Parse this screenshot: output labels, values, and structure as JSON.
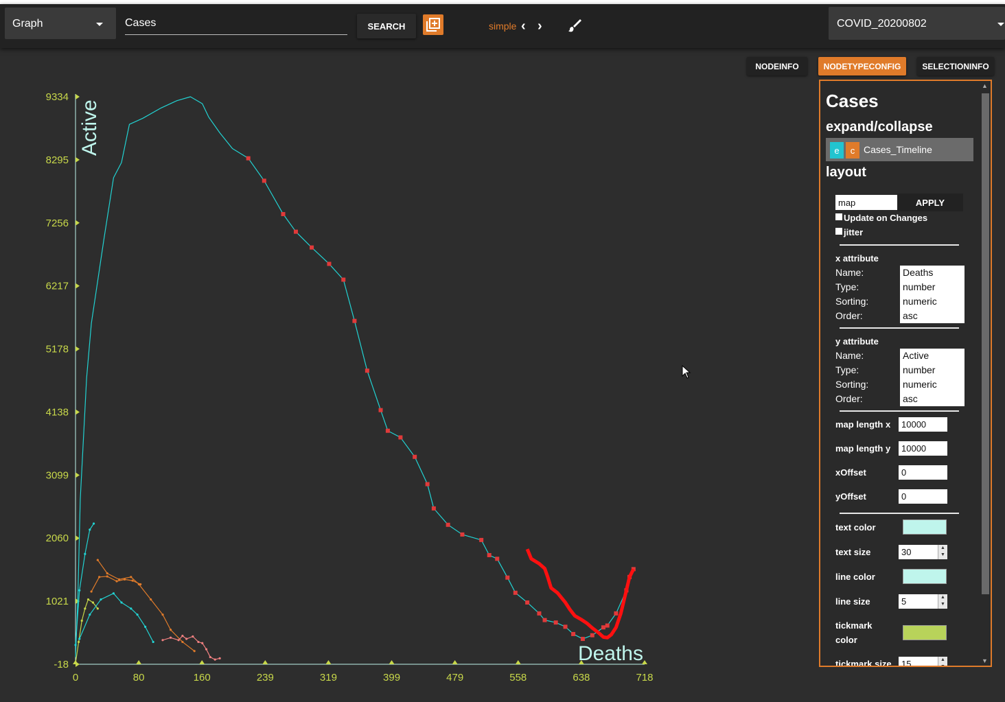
{
  "toolbar": {
    "view_select": "Graph",
    "search_value": "Cases",
    "search_label": "SEARCH",
    "mode_label": "simple",
    "database_select": "COVID_20200802"
  },
  "tabs": [
    {
      "label": "NODEINFO",
      "active": false
    },
    {
      "label": "NODETYPECONFIG",
      "active": true
    },
    {
      "label": "SELECTIONINFO",
      "active": false
    }
  ],
  "panel": {
    "title": "Cases",
    "expand_heading": "expand/collapse",
    "expand_item": {
      "e": "e",
      "c": "c",
      "label": "Cases_Timeline"
    },
    "layout_heading": "layout",
    "layout_value": "map",
    "apply_label": "APPLY",
    "update_on_changes": "Update on Changes",
    "jitter": "jitter",
    "x_attribute": {
      "heading": "x attribute",
      "labels": [
        "Name:",
        "Type:",
        "Sorting:",
        "Order:"
      ],
      "values": [
        "Deaths",
        "number",
        "numeric",
        "asc"
      ]
    },
    "y_attribute": {
      "heading": "y attribute",
      "labels": [
        "Name:",
        "Type:",
        "Sorting:",
        "Order:"
      ],
      "values": [
        "Active",
        "number",
        "numeric",
        "asc"
      ]
    },
    "map_length_x": {
      "label": "map length x",
      "value": "10000"
    },
    "map_length_y": {
      "label": "map length y",
      "value": "10000"
    },
    "x_offset": {
      "label": "xOffset",
      "value": "0"
    },
    "y_offset": {
      "label": "yOffset",
      "value": "0"
    },
    "text_color": {
      "label": "text color",
      "color": "#bff5ec"
    },
    "text_size": {
      "label": "text size",
      "value": "30"
    },
    "line_color": {
      "label": "line color",
      "color": "#bff5ec"
    },
    "line_size": {
      "label": "line size",
      "value": "5"
    },
    "tickmark_color": {
      "label_1": "tickmark",
      "label_2": "color",
      "color": "#b8d35a"
    },
    "tickmark_size": {
      "label": "tickmark size",
      "value": "15"
    }
  },
  "colors": {
    "accent": "#e07b2a",
    "axis": "#c8d84a",
    "series_main": "#22d3d3",
    "highlight": "#ff1010"
  },
  "chart_data": {
    "type": "line",
    "xlabel": "Deaths",
    "ylabel": "Active",
    "x_ticks": [
      "0",
      "80",
      "160",
      "239",
      "319",
      "399",
      "479",
      "558",
      "638",
      "718"
    ],
    "y_ticks": [
      "9334",
      "8295",
      "7256",
      "6217",
      "5178",
      "4138",
      "3099",
      "2060",
      "1021",
      "-18"
    ],
    "xlim": [
      0,
      718
    ],
    "ylim": [
      -18,
      9334
    ],
    "series": [
      {
        "color": "#22d3d3",
        "x": [
          0,
          3,
          6,
          10,
          14,
          20,
          28,
          36,
          48,
          58,
          68,
          85,
          108,
          128,
          145,
          160,
          168,
          182,
          198,
          218,
          238,
          262,
          278,
          298,
          320,
          338,
          352,
          368,
          385,
          394,
          410,
          428,
          444,
          452,
          470,
          488,
          512,
          522,
          532,
          545,
          555,
          570,
          585,
          592,
          606,
          618,
          628,
          640,
          652,
          666,
          671,
          682,
          695,
          699,
          704
        ],
        "y": [
          100,
          1100,
          2700,
          3700,
          4700,
          5600,
          6300,
          7000,
          8000,
          8250,
          8880,
          8980,
          9150,
          9270,
          9334,
          9220,
          9000,
          8740,
          8480,
          8320,
          7950,
          7400,
          7110,
          6850,
          6580,
          6320,
          5640,
          4820,
          4170,
          3830,
          3720,
          3400,
          2950,
          2550,
          2280,
          2120,
          2030,
          1780,
          1720,
          1410,
          1160,
          1000,
          820,
          710,
          670,
          600,
          480,
          400,
          460,
          590,
          620,
          820,
          1200,
          1420,
          1550
        ]
      },
      {
        "color": "#ff1010",
        "x": [
          570,
          575,
          585,
          592,
          596,
          600,
          608,
          618,
          624,
          630,
          638,
          645,
          652,
          660,
          666,
          671,
          676,
          682,
          688,
          695,
          699,
          704
        ],
        "y": [
          1880,
          1720,
          1640,
          1560,
          1410,
          1240,
          1160,
          1000,
          880,
          780,
          720,
          660,
          580,
          500,
          430,
          420,
          470,
          590,
          820,
          1200,
          1420,
          1550
        ]
      },
      {
        "color": "#22d3d3",
        "x": [
          0,
          5,
          12,
          18,
          23
        ],
        "y": [
          300,
          1200,
          1800,
          2200,
          2300
        ]
      },
      {
        "color": "#e07b2a",
        "x": [
          28,
          40,
          55,
          70,
          80,
          95,
          110,
          120,
          135,
          150
        ],
        "y": [
          1700,
          1480,
          1380,
          1420,
          1300,
          1050,
          800,
          550,
          350,
          200
        ]
      },
      {
        "color": "#f08080",
        "x": [
          110,
          120,
          130,
          135,
          140,
          148,
          155,
          160,
          165,
          170,
          176,
          182
        ],
        "y": [
          380,
          420,
          380,
          450,
          400,
          440,
          350,
          330,
          230,
          100,
          60,
          80
        ]
      },
      {
        "color": "#e07b2a",
        "x": [
          20,
          30,
          40,
          52,
          62,
          72,
          82
        ],
        "y": [
          1180,
          1420,
          1430,
          1350,
          1380,
          1360,
          1300
        ]
      },
      {
        "color": "#c8d84a",
        "x": [
          0,
          4,
          8,
          12,
          16,
          22,
          28
        ],
        "y": [
          0,
          350,
          700,
          900,
          1050,
          1000,
          900
        ]
      },
      {
        "color": "#22d3d3",
        "x": [
          5,
          18,
          32,
          48,
          58,
          70,
          78,
          88,
          98
        ],
        "y": [
          400,
          800,
          1050,
          1150,
          1000,
          900,
          800,
          600,
          350
        ]
      }
    ]
  }
}
